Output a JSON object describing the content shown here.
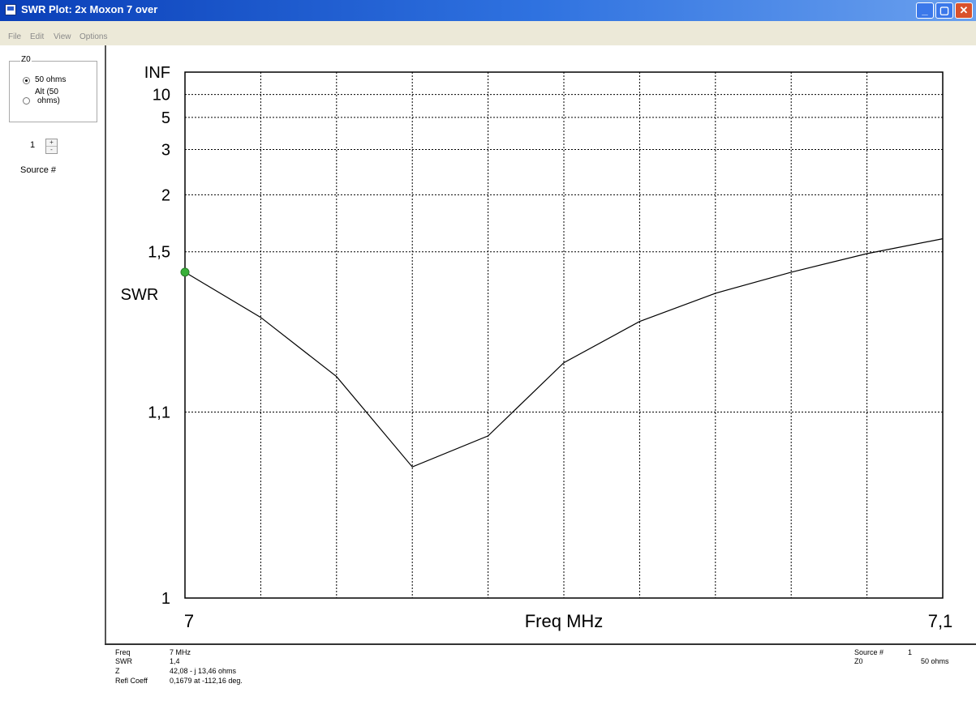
{
  "window": {
    "title": "SWR Plot:  2x Moxon 7 over",
    "buttons": {
      "minimize": "_",
      "maximize": "▢",
      "close": "✕"
    }
  },
  "menu": [
    "File",
    "Edit",
    "View",
    "Options"
  ],
  "z0_group": {
    "title": "Z0",
    "options": [
      {
        "label": "50 ohms",
        "checked": true
      },
      {
        "label_line1": "Alt (50",
        "label_line2": "ohms)",
        "checked": false
      }
    ]
  },
  "source": {
    "value": "1",
    "label": "Source #",
    "up": "+",
    "down": "-"
  },
  "chart_data": {
    "type": "line",
    "ylabel": "SWR",
    "xlabel": "Freq MHz",
    "xlim": [
      7.0,
      7.1
    ],
    "x_tick_labels": [
      "7",
      "7,1"
    ],
    "y_scale": "swr (log of reflection coefficient)",
    "y_tick_labels": [
      "INF",
      "10",
      "5",
      "3",
      "2",
      "1,5",
      "1,1",
      "1"
    ],
    "grid": true,
    "series": [
      {
        "x": [
          7.0,
          7.01,
          7.02,
          7.03,
          7.04,
          7.05,
          7.06,
          7.07,
          7.08,
          7.09,
          7.1
        ],
        "y": [
          1.4,
          1.25,
          1.14,
          1.06,
          1.08,
          1.16,
          1.24,
          1.32,
          1.4,
          1.49,
          1.58
        ]
      }
    ],
    "marker": {
      "x": 7.0,
      "y": 1.4,
      "color": "#38b038"
    }
  },
  "status": {
    "freq_label": "Freq",
    "freq_value": "7 MHz",
    "swr_label": "SWR",
    "swr_value": "1,4",
    "z_label": "Z",
    "z_value": "42,08 - j 13,46 ohms",
    "refl_label": "Refl Coeff",
    "refl_value": "0,1679 at -112,16 deg.",
    "source_label": "Source #",
    "source_value": "1",
    "z0_label": "Z0",
    "z0_value": "50 ohms"
  }
}
